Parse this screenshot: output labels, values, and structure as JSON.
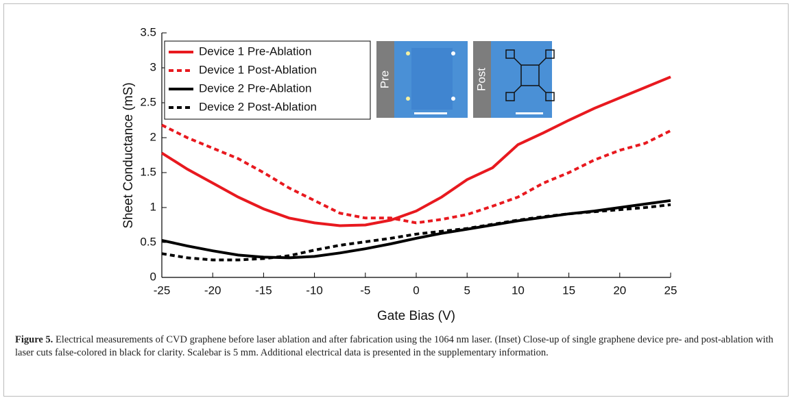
{
  "chart_data": {
    "type": "line",
    "xlabel": "Gate Bias (V)",
    "ylabel": "Sheet Conductance (mS)",
    "x": [
      -25,
      -22.5,
      -20,
      -17.5,
      -15,
      -12.5,
      -10,
      -7.5,
      -5,
      -2.5,
      0,
      2.5,
      5,
      7.5,
      10,
      12.5,
      15,
      17.5,
      20,
      22.5,
      25
    ],
    "series": [
      {
        "name": "Device 1 Pre-Ablation",
        "color": "#e8191f",
        "dashed": false,
        "values": [
          1.78,
          1.55,
          1.35,
          1.15,
          0.98,
          0.85,
          0.78,
          0.74,
          0.75,
          0.82,
          0.95,
          1.15,
          1.4,
          1.57,
          1.9,
          2.07,
          2.25,
          2.42,
          2.57,
          2.72,
          2.87
        ]
      },
      {
        "name": "Device 1 Post-Ablation",
        "color": "#e8191f",
        "dashed": true,
        "values": [
          2.18,
          2.0,
          1.85,
          1.7,
          1.5,
          1.28,
          1.1,
          0.92,
          0.85,
          0.85,
          0.78,
          0.83,
          0.9,
          1.02,
          1.15,
          1.35,
          1.5,
          1.68,
          1.82,
          1.92,
          2.1
        ]
      },
      {
        "name": "Device 2 Pre-Ablation",
        "color": "#000000",
        "dashed": false,
        "values": [
          0.53,
          0.45,
          0.38,
          0.32,
          0.29,
          0.28,
          0.3,
          0.35,
          0.41,
          0.48,
          0.56,
          0.63,
          0.69,
          0.75,
          0.81,
          0.86,
          0.91,
          0.95,
          1.0,
          1.05,
          1.1
        ]
      },
      {
        "name": "Device 2 Post-Ablation",
        "color": "#000000",
        "dashed": true,
        "values": [
          0.34,
          0.28,
          0.25,
          0.25,
          0.27,
          0.31,
          0.39,
          0.46,
          0.51,
          0.56,
          0.62,
          0.66,
          0.7,
          0.76,
          0.82,
          0.87,
          0.91,
          0.94,
          0.97,
          1.0,
          1.04
        ]
      }
    ],
    "xlim": [
      -25,
      25
    ],
    "xticks": [
      -25,
      -20,
      -15,
      -10,
      -5,
      0,
      5,
      10,
      15,
      20,
      25
    ],
    "ylim": [
      0,
      3.5
    ],
    "yticks": [
      0,
      0.5,
      1,
      1.5,
      2,
      2.5,
      3,
      3.5
    ],
    "grid": false,
    "legend": "upper left",
    "inset_labels": [
      "Pre",
      "Post"
    ]
  },
  "caption": {
    "label": "Figure 5.",
    "text": "Electrical measurements of CVD graphene before laser ablation and after fabrication using the 1064 nm laser. (Inset) Close-up of single graphene device pre- and post-ablation with laser cuts false-colored in black for clarity. Scalebar is 5 mm. Additional electrical data is presented in the supplementary information."
  }
}
